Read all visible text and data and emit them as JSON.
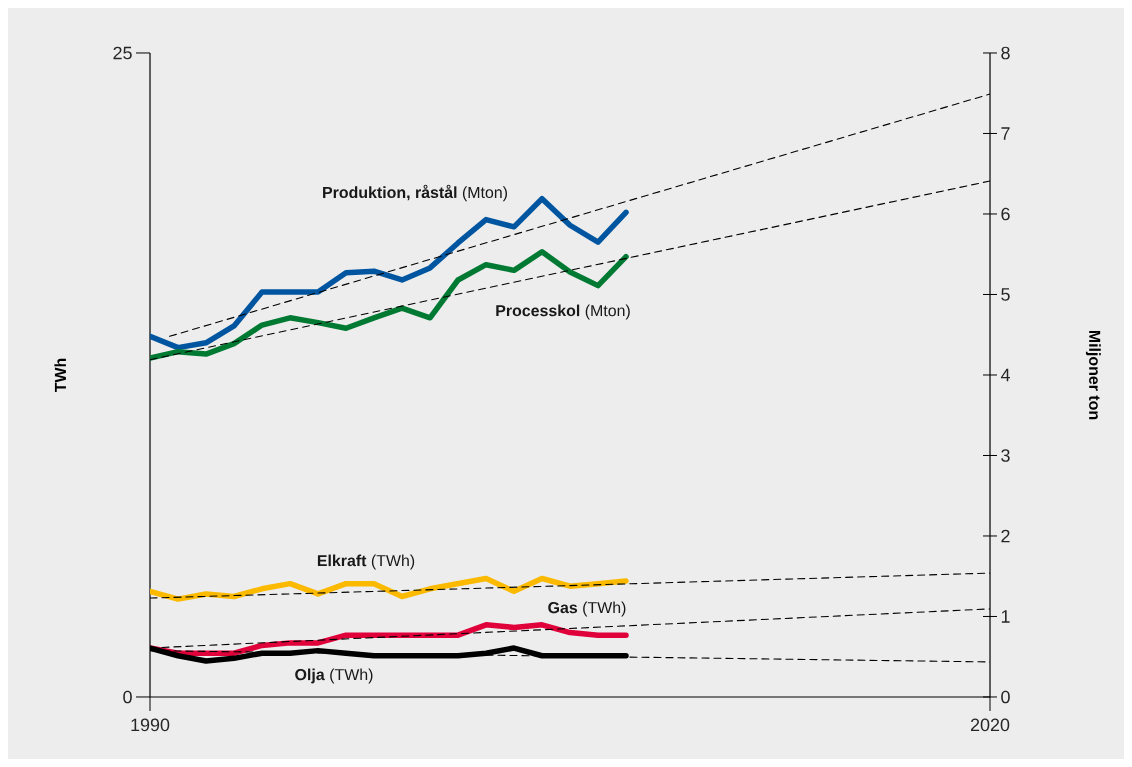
{
  "chart_data": {
    "type": "line",
    "ylabel": "TWh",
    "y2label": "Miljoner ton",
    "xlim": [
      1990,
      2020
    ],
    "xticks": [
      1990,
      2020
    ],
    "ylim": [
      0,
      25
    ],
    "yticks": [
      0,
      25
    ],
    "y2lim": [
      0,
      8
    ],
    "y2ticks": [
      0,
      1,
      2,
      3,
      4,
      5,
      6,
      7,
      8
    ],
    "marker": "none",
    "line_style": "solid",
    "x": [
      1990,
      1991,
      1992,
      1993,
      1994,
      1995,
      1996,
      1997,
      1998,
      1999,
      2000,
      2001,
      2002,
      2003,
      2004,
      2005,
      2006,
      2007
    ],
    "series": [
      {
        "name": "**Produktion, råstål** (Mton)",
        "color": "#0055a0",
        "axis": "y2",
        "values": [
          4.48,
          4.34,
          4.4,
          4.61,
          5.03,
          5.03,
          5.03,
          5.27,
          5.29,
          5.18,
          5.33,
          5.64,
          5.93,
          5.84,
          6.19,
          5.86,
          5.65,
          6.02
        ]
      },
      {
        "name": "**Processkol** (Mton)",
        "color": "#007a33",
        "axis": "y2",
        "values": [
          4.21,
          4.29,
          4.26,
          4.39,
          4.62,
          4.71,
          4.65,
          4.58,
          4.71,
          4.83,
          4.71,
          5.18,
          5.37,
          5.3,
          5.53,
          5.28,
          5.11,
          5.47
        ]
      },
      {
        "name": "**Elkraft** (TWh)",
        "color": "#fbb900",
        "values": [
          4.1,
          3.8,
          4.0,
          3.9,
          4.2,
          4.4,
          4.0,
          4.4,
          4.4,
          3.9,
          4.2,
          4.4,
          4.6,
          4.1,
          4.6,
          4.3,
          4.4,
          4.5
        ]
      },
      {
        "name": "**Gas** (TWh)",
        "color": "#e0003a",
        "values": [
          1.9,
          1.7,
          1.7,
          1.7,
          2.0,
          2.1,
          2.1,
          2.4,
          2.4,
          2.4,
          2.4,
          2.4,
          2.8,
          2.7,
          2.8,
          2.5,
          2.4,
          2.4
        ]
      },
      {
        "name": "**Olja** (TWh)",
        "color": "#000000",
        "values": [
          1.9,
          1.6,
          1.4,
          1.5,
          1.7,
          1.7,
          1.8,
          1.7,
          1.6,
          1.6,
          1.6,
          1.6,
          1.7,
          1.9,
          1.6,
          1.6,
          1.6,
          1.6
        ]
      },
      {
        "color": "#000000",
        "axis": "y2",
        "line_style": "dashed",
        "x": [
          1990.7,
          2020
        ],
        "values": [
          4.48,
          7.49
        ]
      },
      {
        "color": "#000000",
        "axis": "y2",
        "line_style": "dashed",
        "x": [
          1990,
          2020
        ],
        "values": [
          4.19,
          6.41
        ]
      },
      {
        "color": "#000000",
        "line_style": "dashed",
        "x": [
          1990,
          2020
        ],
        "values": [
          3.84,
          4.81
        ]
      },
      {
        "color": "#000000",
        "line_style": "dashed",
        "x": [
          1990,
          2020
        ],
        "values": [
          1.9,
          3.42
        ]
      },
      {
        "color": "#000000",
        "line_style": "dashed",
        "x": [
          1990,
          2020
        ],
        "values": [
          1.8,
          1.36
        ]
      }
    ]
  }
}
